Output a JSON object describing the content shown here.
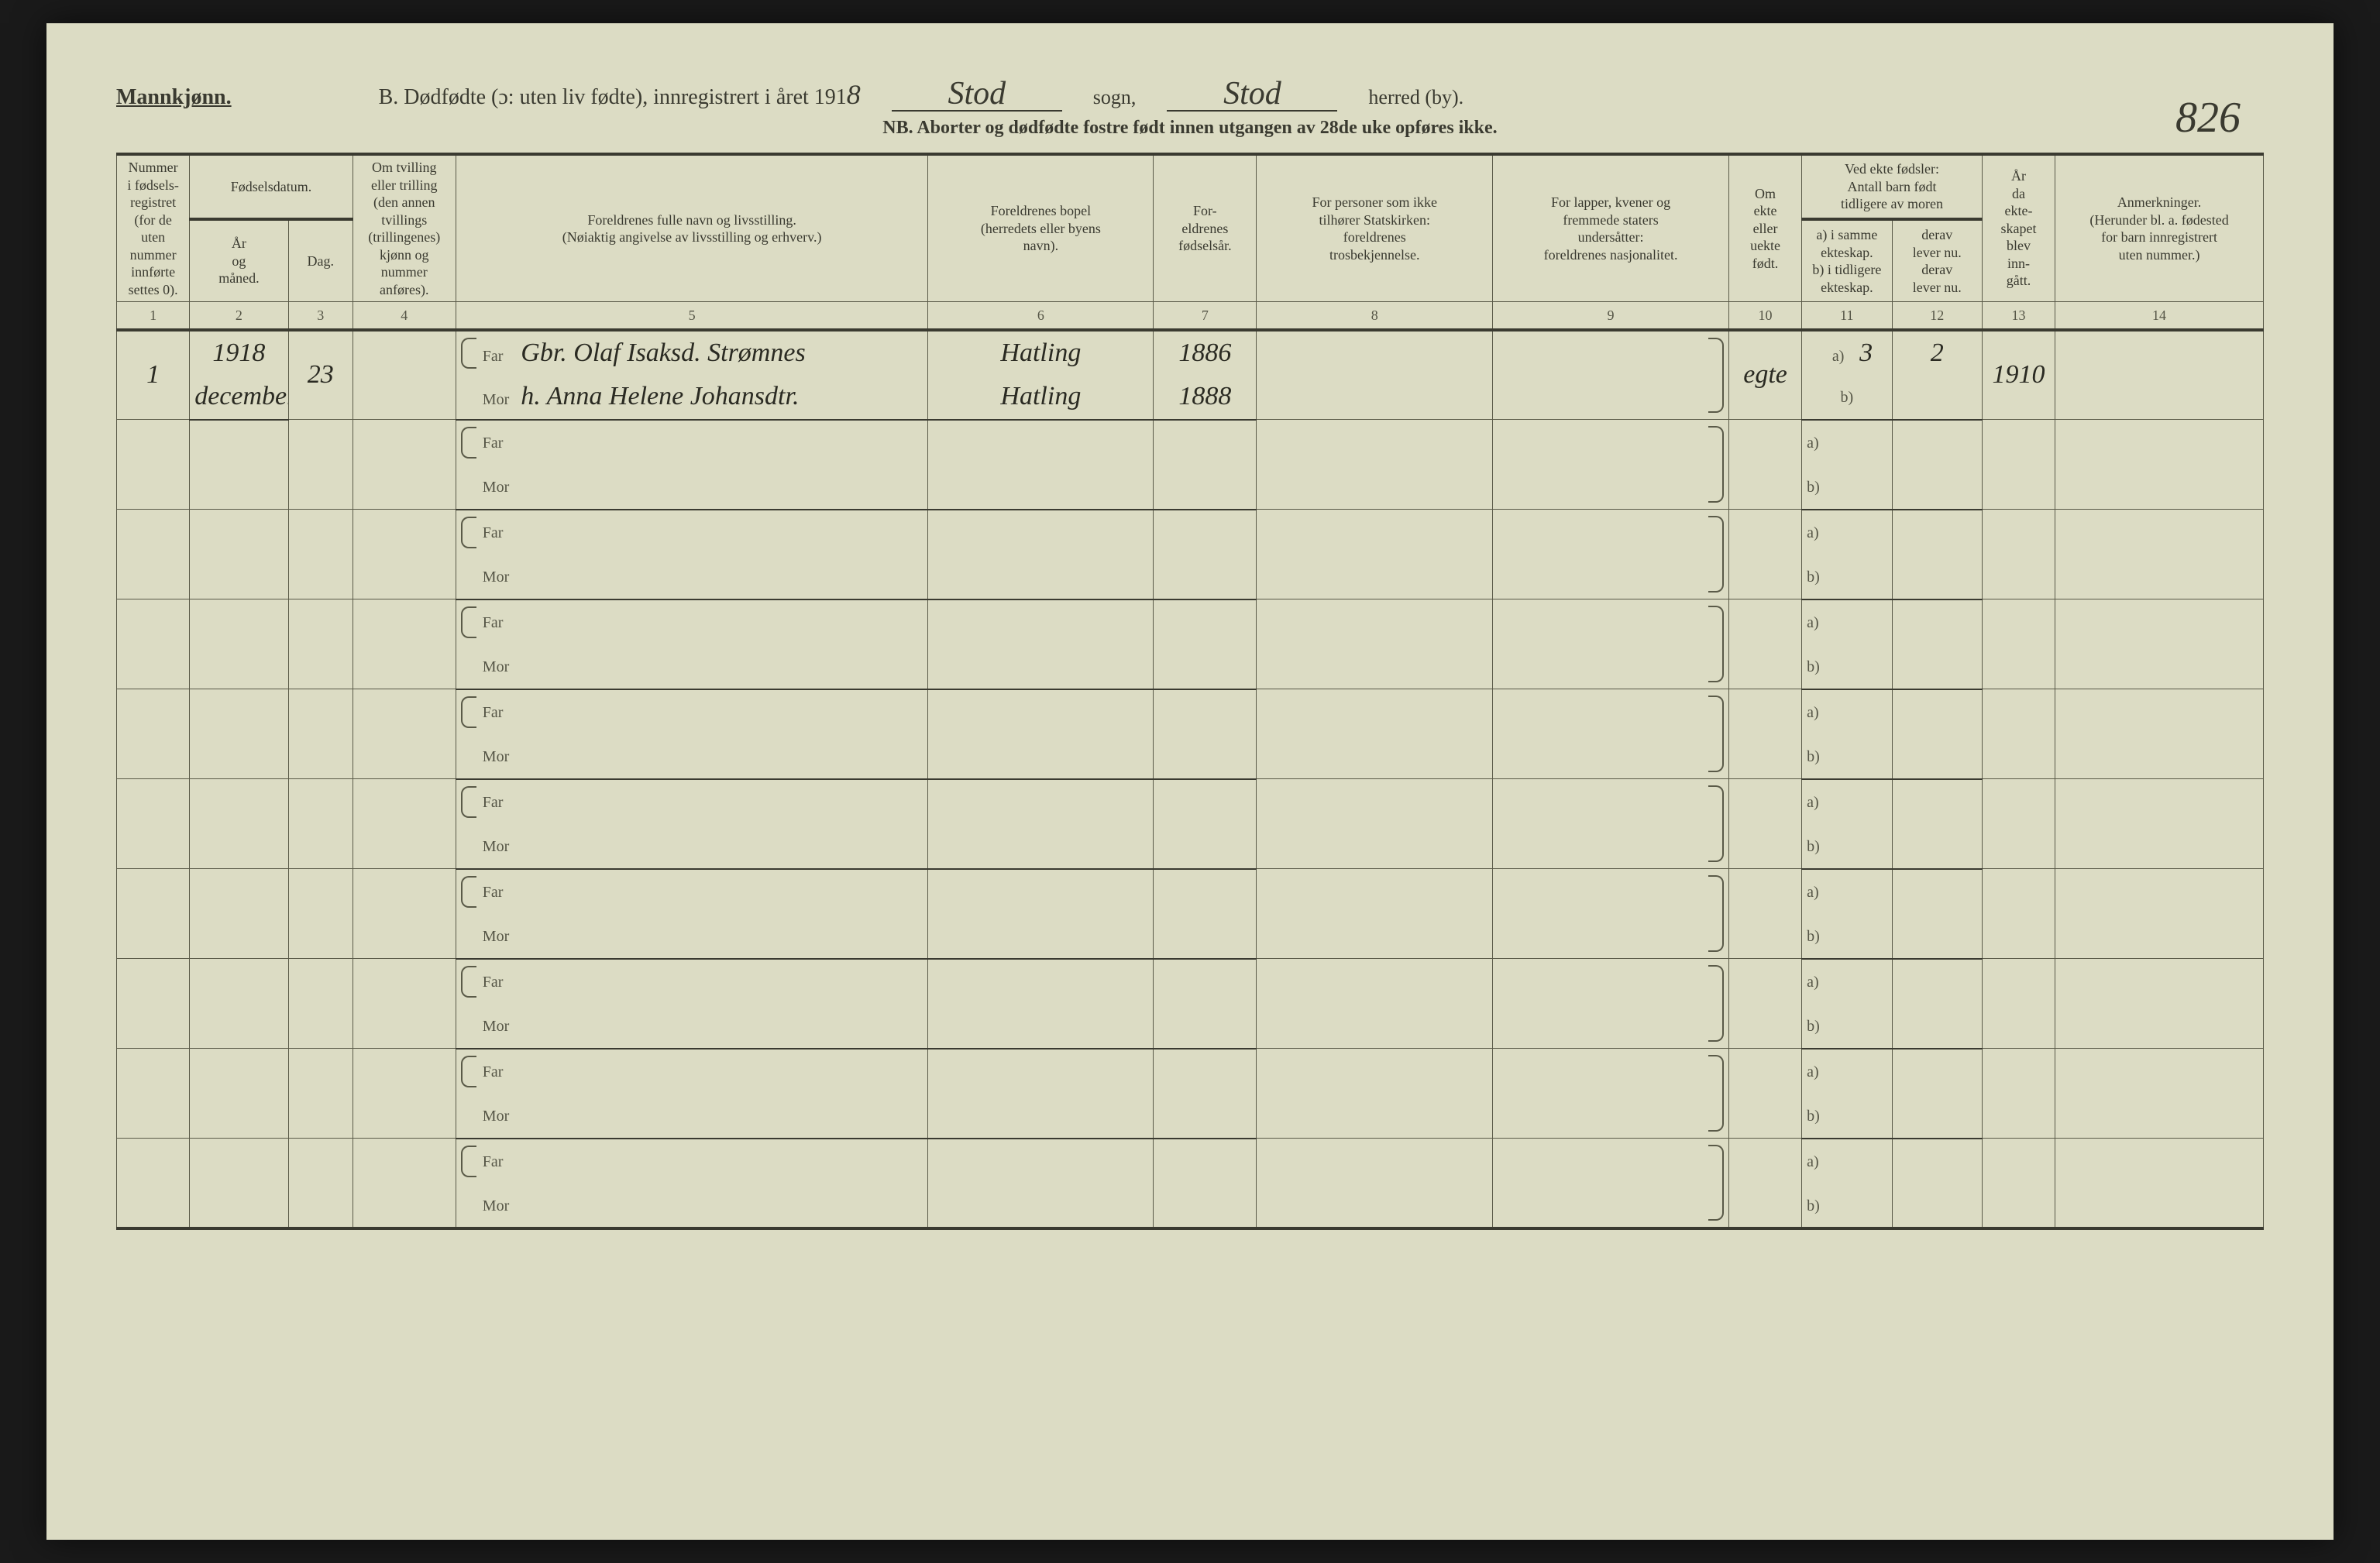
{
  "header": {
    "mannkjonn": "Mannkjønn.",
    "title_b": "B. Dødfødte (ɔ: uten liv fødte), innregistrert i året 191",
    "year_suffix": "8",
    "sogn_value": "Stod",
    "sogn_label": "sogn,",
    "herred_value": "Stod",
    "herred_label": "herred (by).",
    "page_number": "826",
    "nb": "NB. Aborter og dødfødte fostre født innen utgangen av 28de uke opføres ikke."
  },
  "columns": {
    "c1": "Nummer\ni fødsels-\nregistret\n(for de\nuten\nnummer\ninnførte\nsettes 0).",
    "c2g": "Fødselsdatum.",
    "c2": "År\nog\nmåned.",
    "c3": "Dag.",
    "c4": "Om tvilling\neller trilling\n(den annen\ntvillings\n(trillingenes)\nkjønn og\nnummer\nanføres).",
    "c5": "Foreldrenes fulle navn og livsstilling.\n(Nøiaktig angivelse av livsstilling og erhverv.)",
    "c6": "Foreldrenes bopel\n(herredets eller byens\nnavn).",
    "c7": "For-\neldrenes\nfødselsår.",
    "c8": "For personer som ikke\ntilhører Statskirken:\nforeldrenes\ntrosbekjennelse.",
    "c9": "For lapper, kvener og\nfremmede staters\nundersåtter:\nforeldrenes nasjonalitet.",
    "c10": "Om\nekte\neller\nuekte\nfødt.",
    "c11g": "Ved ekte fødsler:\nAntall barn født\ntidligere av moren",
    "c11": "a) i samme\nekteskap.\nb) i tidligere\nekteskap.",
    "c12": "derav\nlever nu.\nderav\nlever nu.",
    "c13": "År\nda\nekte-\nskapet\nblev\ninn-\ngått.",
    "c14": "Anmerkninger.\n(Herunder bl. a. fødested\nfor barn innregistrert\nuten nummer.)"
  },
  "colnums": [
    "1",
    "2",
    "3",
    "4",
    "5",
    "6",
    "7",
    "8",
    "9",
    "10",
    "11",
    "12",
    "13",
    "14"
  ],
  "row_labels": {
    "far": "Far",
    "mor": "Mor",
    "a": "a)",
    "b": "b)"
  },
  "entries": [
    {
      "num": "1",
      "year": "1918",
      "month": "december",
      "day": "23",
      "far_name": "Gbr. Olaf Isaksd. Strømnes",
      "mor_name": "h. Anna Helene Johansdtr.",
      "far_bopel": "Hatling",
      "mor_bopel": "Hatling",
      "far_aar": "1886",
      "mor_aar": "1888",
      "ekte": "egte",
      "c11a": "3",
      "c12a": "2",
      "c13": "1910"
    }
  ],
  "style": {
    "paper_bg": "#dcdcc4",
    "ink": "#3a3a30",
    "rule": "#5a5a48",
    "col_widths_pct": [
      3.4,
      4.6,
      3.0,
      4.8,
      22.0,
      10.5,
      4.8,
      11.0,
      11.0,
      3.4,
      4.2,
      4.2,
      3.4,
      9.7
    ]
  }
}
